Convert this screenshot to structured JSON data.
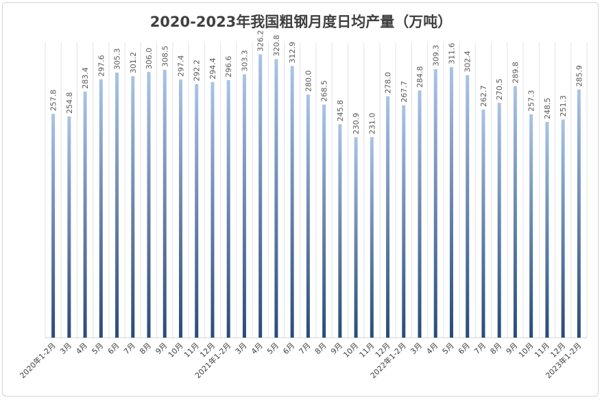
{
  "chart_data": {
    "type": "bar",
    "title": "2020-2023年我国粗钢月度日均产量（万吨）",
    "xlabel": "",
    "ylabel": "",
    "ylim": [
      0,
      340
    ],
    "grid": "vertical",
    "legend": "none",
    "bar_color_top": "#aac4e6",
    "bar_color_bottom": "#2a4b78",
    "categories": [
      "2020年1-2月",
      "3月",
      "4月",
      "5月",
      "6月",
      "7月",
      "8月",
      "9月",
      "10月",
      "11月",
      "12月",
      "2021年1-2月",
      "3月",
      "4月",
      "5月",
      "6月",
      "7月",
      "8月",
      "9月",
      "10月",
      "11月",
      "12月",
      "2022年1-2月",
      "3月",
      "4月",
      "5月",
      "6月",
      "7月",
      "8月",
      "9月",
      "10月",
      "11月",
      "12月",
      "2023年1-2月"
    ],
    "values": [
      257.8,
      254.8,
      283.4,
      297.6,
      305.3,
      301.2,
      306.0,
      308.5,
      297.4,
      292.2,
      294.4,
      296.6,
      303.3,
      326.2,
      320.8,
      312.9,
      280.0,
      268.5,
      245.8,
      230.9,
      231.0,
      278.0,
      267.7,
      284.8,
      309.3,
      311.6,
      302.4,
      262.7,
      270.5,
      289.8,
      257.3,
      248.5,
      251.3,
      285.9
    ],
    "labels": [
      "257.8",
      "254.8",
      "283.4",
      "297.6",
      "305.3",
      "301.2",
      "306.0",
      "308.5",
      "297.4",
      "292.2",
      "294.4",
      "296.6",
      "303.3",
      "326.2",
      "320.8",
      "312.9",
      "280.0",
      "268.5",
      "245.8",
      "230.9",
      "231.0",
      "278.0",
      "267.7",
      "284.8",
      "309.3",
      "311.6",
      "302.4",
      "262.7",
      "270.5",
      "289.8",
      "257.3",
      "248.5",
      "251.3",
      "285.9"
    ]
  }
}
